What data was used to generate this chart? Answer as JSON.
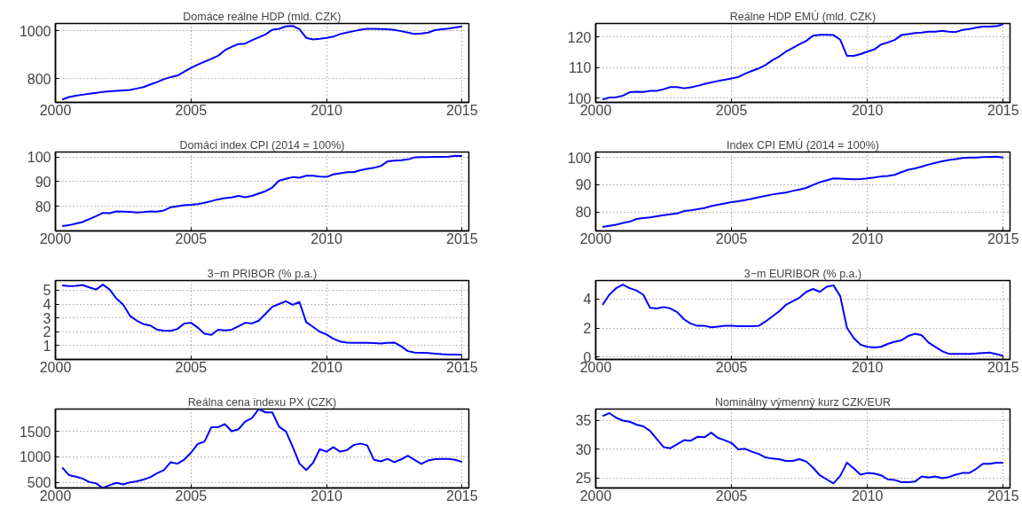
{
  "chart_data": [
    {
      "type": "line",
      "title": "Domáce reálne HDP (mld. CZK)",
      "xlim": [
        2000,
        2015.25
      ],
      "xticks": [
        2000,
        2005,
        2010,
        2015
      ],
      "ylim": [
        700,
        1030
      ],
      "yticks": [
        800,
        1000
      ],
      "grid": true,
      "x": [
        2000.25,
        2000.5,
        2000.75,
        2001,
        2001.25,
        2001.5,
        2001.75,
        2002,
        2002.25,
        2002.5,
        2002.75,
        2003,
        2003.25,
        2003.5,
        2003.75,
        2004,
        2004.25,
        2004.5,
        2004.75,
        2005,
        2005.25,
        2005.5,
        2005.75,
        2006,
        2006.25,
        2006.5,
        2006.75,
        2007,
        2007.25,
        2007.5,
        2007.75,
        2008,
        2008.25,
        2008.5,
        2008.75,
        2009,
        2009.25,
        2009.5,
        2009.75,
        2010,
        2010.25,
        2010.5,
        2010.75,
        2011,
        2011.25,
        2011.5,
        2011.75,
        2012,
        2012.25,
        2012.5,
        2012.75,
        2013,
        2013.25,
        2013.5,
        2013.75,
        2014,
        2014.25,
        2014.5,
        2014.75,
        2015
      ],
      "series": [
        {
          "color": "#0000ff",
          "values": [
            712,
            722,
            728,
            732,
            736,
            740,
            744,
            746,
            748,
            750,
            752,
            758,
            764,
            775,
            785,
            797,
            806,
            812,
            828,
            844,
            858,
            870,
            882,
            895,
            918,
            932,
            944,
            946,
            960,
            972,
            984,
            1004,
            1008,
            1018,
            1020,
            1006,
            970,
            963,
            966,
            970,
            975,
            986,
            992,
            998,
            1004,
            1008,
            1008,
            1007,
            1006,
            1003,
            998,
            992,
            986,
            988,
            992,
            1002,
            1006,
            1009,
            1013,
            1018
          ]
        }
      ]
    },
    {
      "type": "line",
      "title": "Reálne HDP EMÚ (mld. CZK)",
      "xlim": [
        2000,
        2015.25
      ],
      "xticks": [
        2000,
        2005,
        2010,
        2015
      ],
      "ylim": [
        98.6,
        124.4
      ],
      "yticks": [
        100,
        110,
        120
      ],
      "grid": true,
      "x": [
        2000.25,
        2000.5,
        2000.75,
        2001,
        2001.25,
        2001.5,
        2001.75,
        2002,
        2002.25,
        2002.5,
        2002.75,
        2003,
        2003.25,
        2003.5,
        2003.75,
        2004,
        2004.25,
        2004.5,
        2004.75,
        2005,
        2005.25,
        2005.5,
        2005.75,
        2006,
        2006.25,
        2006.5,
        2006.75,
        2007,
        2007.25,
        2007.5,
        2007.75,
        2008,
        2008.25,
        2008.5,
        2008.75,
        2009,
        2009.25,
        2009.5,
        2009.75,
        2010,
        2010.25,
        2010.5,
        2010.75,
        2011,
        2011.25,
        2011.5,
        2011.75,
        2012,
        2012.25,
        2012.5,
        2012.75,
        2013,
        2013.25,
        2013.5,
        2013.75,
        2014,
        2014.25,
        2014.5,
        2014.75,
        2015
      ],
      "series": [
        {
          "color": "#0000ff",
          "values": [
            99.5,
            100.2,
            100.3,
            100.8,
            101.9,
            102.1,
            102.0,
            102.4,
            102.4,
            102.9,
            103.6,
            103.6,
            103.2,
            103.5,
            104.0,
            104.6,
            105.1,
            105.6,
            106.0,
            106.4,
            106.9,
            108.0,
            108.9,
            109.7,
            110.8,
            112.4,
            113.6,
            115.2,
            116.4,
            117.6,
            118.7,
            120.4,
            120.7,
            120.7,
            120.6,
            119.1,
            113.8,
            113.8,
            114.4,
            115.2,
            115.9,
            117.5,
            118.2,
            119.0,
            120.6,
            120.9,
            121.3,
            121.4,
            121.7,
            121.7,
            122.0,
            121.7,
            121.6,
            122.3,
            122.6,
            123.0,
            123.4,
            123.4,
            123.5,
            124.2
          ]
        }
      ]
    },
    {
      "type": "line",
      "title": "Domáci index CPI (2014 = 100%)",
      "xlim": [
        2000,
        2015.25
      ],
      "xticks": [
        2000,
        2005,
        2010,
        2015
      ],
      "ylim": [
        70,
        102
      ],
      "yticks": [
        80,
        90,
        100
      ],
      "grid": true,
      "x": [
        2000.25,
        2000.5,
        2000.75,
        2001,
        2001.25,
        2001.5,
        2001.75,
        2002,
        2002.25,
        2002.5,
        2002.75,
        2003,
        2003.25,
        2003.5,
        2003.75,
        2004,
        2004.25,
        2004.5,
        2004.75,
        2005,
        2005.25,
        2005.5,
        2005.75,
        2006,
        2006.25,
        2006.5,
        2006.75,
        2007,
        2007.25,
        2007.5,
        2007.75,
        2008,
        2008.25,
        2008.5,
        2008.75,
        2009,
        2009.25,
        2009.5,
        2009.75,
        2010,
        2010.25,
        2010.5,
        2010.75,
        2011,
        2011.25,
        2011.5,
        2011.75,
        2012,
        2012.25,
        2012.5,
        2012.75,
        2013,
        2013.25,
        2013.5,
        2013.75,
        2014,
        2014.25,
        2014.5,
        2014.75,
        2015
      ],
      "series": [
        {
          "color": "#0000ff",
          "values": [
            72,
            72.3,
            73,
            73.6,
            74.8,
            76,
            77.3,
            77.2,
            77.9,
            77.8,
            77.7,
            77.5,
            77.6,
            77.9,
            77.8,
            78.3,
            79.6,
            80,
            80.4,
            80.6,
            80.9,
            81.4,
            82.1,
            82.8,
            83.3,
            83.6,
            84.2,
            83.7,
            84.2,
            85.2,
            86.1,
            87.6,
            90.4,
            91.1,
            91.8,
            91.6,
            92.4,
            92.4,
            92.0,
            91.9,
            92.9,
            93.4,
            93.8,
            93.8,
            94.6,
            95.2,
            95.6,
            96.3,
            98.2,
            98.5,
            98.7,
            99,
            99.8,
            99.9,
            99.9,
            100,
            100,
            100.1,
            100.5,
            100.4
          ]
        }
      ]
    },
    {
      "type": "line",
      "title": "Index CPI EMÚ (2014 = 100%)",
      "xlim": [
        2000,
        2015.25
      ],
      "xticks": [
        2000,
        2005,
        2010,
        2015
      ],
      "ylim": [
        73,
        102
      ],
      "yticks": [
        80,
        90,
        100
      ],
      "grid": true,
      "x": [
        2000.25,
        2000.5,
        2000.75,
        2001,
        2001.25,
        2001.5,
        2001.75,
        2002,
        2002.25,
        2002.5,
        2002.75,
        2003,
        2003.25,
        2003.5,
        2003.75,
        2004,
        2004.25,
        2004.5,
        2004.75,
        2005,
        2005.25,
        2005.5,
        2005.75,
        2006,
        2006.25,
        2006.5,
        2006.75,
        2007,
        2007.25,
        2007.5,
        2007.75,
        2008,
        2008.25,
        2008.5,
        2008.75,
        2009,
        2009.25,
        2009.5,
        2009.75,
        2010,
        2010.25,
        2010.5,
        2010.75,
        2011,
        2011.25,
        2011.5,
        2011.75,
        2012,
        2012.25,
        2012.5,
        2012.75,
        2013,
        2013.25,
        2013.5,
        2013.75,
        2014,
        2014.25,
        2014.5,
        2014.75,
        2015
      ],
      "series": [
        {
          "color": "#0000ff",
          "values": [
            74.5,
            74.9,
            75.3,
            75.9,
            76.4,
            77.4,
            77.7,
            78.0,
            78.4,
            78.8,
            79.1,
            79.4,
            80.3,
            80.6,
            81.0,
            81.4,
            82.1,
            82.6,
            83.1,
            83.6,
            83.9,
            84.3,
            84.8,
            85.4,
            85.9,
            86.4,
            86.8,
            87.1,
            87.7,
            88.2,
            88.8,
            89.9,
            90.9,
            91.6,
            92.3,
            92.2,
            92.1,
            92.0,
            92.1,
            92.3,
            92.6,
            93.0,
            93.2,
            93.6,
            94.6,
            95.5,
            96.0,
            96.6,
            97.4,
            98.0,
            98.6,
            99.1,
            99.4,
            99.8,
            100.0,
            100.0,
            100.1,
            100.2,
            100.3,
            100.0
          ]
        }
      ]
    },
    {
      "type": "line",
      "title": "3−m PRIBOR (% p.a.)",
      "xlim": [
        2000,
        2015.25
      ],
      "xticks": [
        2000,
        2005,
        2010,
        2015
      ],
      "ylim": [
        0,
        5.7
      ],
      "yticks": [
        1,
        2,
        3,
        4,
        5
      ],
      "grid": true,
      "x": [
        2000.25,
        2000.5,
        2000.75,
        2001,
        2001.25,
        2001.5,
        2001.75,
        2002,
        2002.25,
        2002.5,
        2002.75,
        2003,
        2003.25,
        2003.5,
        2003.75,
        2004,
        2004.25,
        2004.5,
        2004.75,
        2005,
        2005.25,
        2005.5,
        2005.75,
        2006,
        2006.25,
        2006.5,
        2006.75,
        2007,
        2007.25,
        2007.5,
        2007.75,
        2008,
        2008.25,
        2008.5,
        2008.75,
        2009,
        2009.25,
        2009.5,
        2009.75,
        2010,
        2010.25,
        2010.5,
        2010.75,
        2011,
        2011.25,
        2011.5,
        2011.75,
        2012,
        2012.25,
        2012.5,
        2012.75,
        2013,
        2013.25,
        2013.5,
        2013.75,
        2014,
        2014.25,
        2014.5,
        2014.75,
        2015
      ],
      "series": [
        {
          "color": "#0000ff",
          "values": [
            5.35,
            5.3,
            5.32,
            5.38,
            5.2,
            5.05,
            5.4,
            5.05,
            4.4,
            3.95,
            3.15,
            2.8,
            2.55,
            2.45,
            2.15,
            2.08,
            2.07,
            2.2,
            2.6,
            2.65,
            2.3,
            1.85,
            1.78,
            2.15,
            2.1,
            2.15,
            2.4,
            2.65,
            2.6,
            2.8,
            3.3,
            3.8,
            4.0,
            4.2,
            3.95,
            4.15,
            2.7,
            2.35,
            2.0,
            1.8,
            1.5,
            1.3,
            1.22,
            1.2,
            1.2,
            1.2,
            1.18,
            1.15,
            1.2,
            1.22,
            0.95,
            0.6,
            0.5,
            0.48,
            0.46,
            0.42,
            0.38,
            0.36,
            0.35,
            0.34
          ]
        }
      ]
    },
    {
      "type": "line",
      "title": "3−m EURIBOR (% p.a.)",
      "xlim": [
        2000,
        2015.25
      ],
      "xticks": [
        2000,
        2005,
        2010,
        2015
      ],
      "ylim": [
        -0.17,
        5.28
      ],
      "yticks": [
        0,
        2,
        4
      ],
      "grid": true,
      "x": [
        2000.25,
        2000.5,
        2000.75,
        2001,
        2001.25,
        2001.5,
        2001.75,
        2002,
        2002.25,
        2002.5,
        2002.75,
        2003,
        2003.25,
        2003.5,
        2003.75,
        2004,
        2004.25,
        2004.5,
        2004.75,
        2005,
        2005.25,
        2005.5,
        2005.75,
        2006,
        2006.25,
        2006.5,
        2006.75,
        2007,
        2007.25,
        2007.5,
        2007.75,
        2008,
        2008.25,
        2008.5,
        2008.75,
        2009,
        2009.25,
        2009.5,
        2009.75,
        2010,
        2010.25,
        2010.5,
        2010.75,
        2011,
        2011.25,
        2011.5,
        2011.75,
        2012,
        2012.25,
        2012.5,
        2012.75,
        2013,
        2013.25,
        2013.5,
        2013.75,
        2014,
        2014.25,
        2014.5,
        2014.75,
        2015
      ],
      "series": [
        {
          "color": "#0000ff",
          "values": [
            3.6,
            4.3,
            4.75,
            5.0,
            4.75,
            4.6,
            4.3,
            3.4,
            3.35,
            3.45,
            3.35,
            3.1,
            2.6,
            2.3,
            2.15,
            2.15,
            2.05,
            2.1,
            2.15,
            2.15,
            2.13,
            2.12,
            2.13,
            2.15,
            2.45,
            2.8,
            3.15,
            3.6,
            3.85,
            4.1,
            4.5,
            4.7,
            4.5,
            4.85,
            4.95,
            4.2,
            2.0,
            1.3,
            0.85,
            0.7,
            0.65,
            0.7,
            0.9,
            1.05,
            1.15,
            1.45,
            1.6,
            1.5,
            1.0,
            0.7,
            0.4,
            0.22,
            0.22,
            0.21,
            0.22,
            0.24,
            0.28,
            0.3,
            0.2,
            0.08
          ]
        }
      ]
    },
    {
      "type": "line",
      "title": "Reálna cena indexu PX (CZK)",
      "xlim": [
        2000,
        2015.25
      ],
      "xticks": [
        2000,
        2005,
        2010,
        2015
      ],
      "ylim": [
        390,
        1935
      ],
      "yticks": [
        500,
        1000,
        1500
      ],
      "grid": true,
      "x": [
        2000.25,
        2000.5,
        2000.75,
        2001,
        2001.25,
        2001.5,
        2001.75,
        2002,
        2002.25,
        2002.5,
        2002.75,
        2003,
        2003.25,
        2003.5,
        2003.75,
        2004,
        2004.25,
        2004.5,
        2004.75,
        2005,
        2005.25,
        2005.5,
        2005.75,
        2006,
        2006.25,
        2006.5,
        2006.75,
        2007,
        2007.25,
        2007.5,
        2007.75,
        2008,
        2008.25,
        2008.5,
        2008.75,
        2009,
        2009.25,
        2009.5,
        2009.75,
        2010,
        2010.25,
        2010.5,
        2010.75,
        2011,
        2011.25,
        2011.5,
        2011.75,
        2012,
        2012.25,
        2012.5,
        2012.75,
        2013,
        2013.25,
        2013.5,
        2013.75,
        2014,
        2014.25,
        2014.5,
        2014.75,
        2015
      ],
      "series": [
        {
          "color": "#0000ff",
          "values": [
            790,
            640,
            610,
            575,
            505,
            480,
            390,
            445,
            490,
            460,
            500,
            520,
            555,
            600,
            680,
            740,
            895,
            865,
            945,
            1080,
            1250,
            1300,
            1580,
            1580,
            1640,
            1500,
            1540,
            1690,
            1760,
            1935,
            1870,
            1870,
            1590,
            1500,
            1200,
            870,
            740,
            880,
            1150,
            1100,
            1190,
            1100,
            1130,
            1230,
            1260,
            1225,
            940,
            910,
            960,
            895,
            950,
            1020,
            940,
            860,
            930,
            955,
            960,
            960,
            940,
            900
          ]
        }
      ]
    },
    {
      "type": "line",
      "title": "Nominálny výmenný kurz CZK/EUR",
      "xlim": [
        2000,
        2015.25
      ],
      "xticks": [
        2000,
        2005,
        2010,
        2015
      ],
      "ylim": [
        23.3,
        37
      ],
      "yticks": [
        25,
        30,
        35
      ],
      "grid": true,
      "x": [
        2000.25,
        2000.5,
        2000.75,
        2001,
        2001.25,
        2001.5,
        2001.75,
        2002,
        2002.25,
        2002.5,
        2002.75,
        2003,
        2003.25,
        2003.5,
        2003.75,
        2004,
        2004.25,
        2004.5,
        2004.75,
        2005,
        2005.25,
        2005.5,
        2005.75,
        2006,
        2006.25,
        2006.5,
        2006.75,
        2007,
        2007.25,
        2007.5,
        2007.75,
        2008,
        2008.25,
        2008.5,
        2008.75,
        2009,
        2009.25,
        2009.5,
        2009.75,
        2010,
        2010.25,
        2010.5,
        2010.75,
        2011,
        2011.25,
        2011.5,
        2011.75,
        2012,
        2012.25,
        2012.5,
        2012.75,
        2013,
        2013.25,
        2013.5,
        2013.75,
        2014,
        2014.25,
        2014.5,
        2014.75,
        2015
      ],
      "series": [
        {
          "color": "#0000ff",
          "values": [
            35.8,
            36.3,
            35.5,
            35.0,
            34.8,
            34.3,
            34.0,
            33.2,
            31.8,
            30.4,
            30.2,
            30.9,
            31.6,
            31.5,
            32.2,
            32.1,
            32.9,
            32.0,
            31.6,
            31.1,
            30.0,
            30.1,
            29.6,
            29.2,
            28.6,
            28.4,
            28.3,
            28.0,
            28.0,
            28.3,
            27.9,
            26.8,
            25.5,
            24.8,
            24.1,
            25.4,
            27.7,
            26.7,
            25.6,
            25.9,
            25.8,
            25.5,
            24.8,
            24.7,
            24.3,
            24.3,
            24.4,
            25.3,
            25.1,
            25.3,
            25.0,
            25.2,
            25.6,
            25.9,
            25.9,
            26.6,
            27.5,
            27.5,
            27.7,
            27.7
          ]
        }
      ]
    }
  ]
}
